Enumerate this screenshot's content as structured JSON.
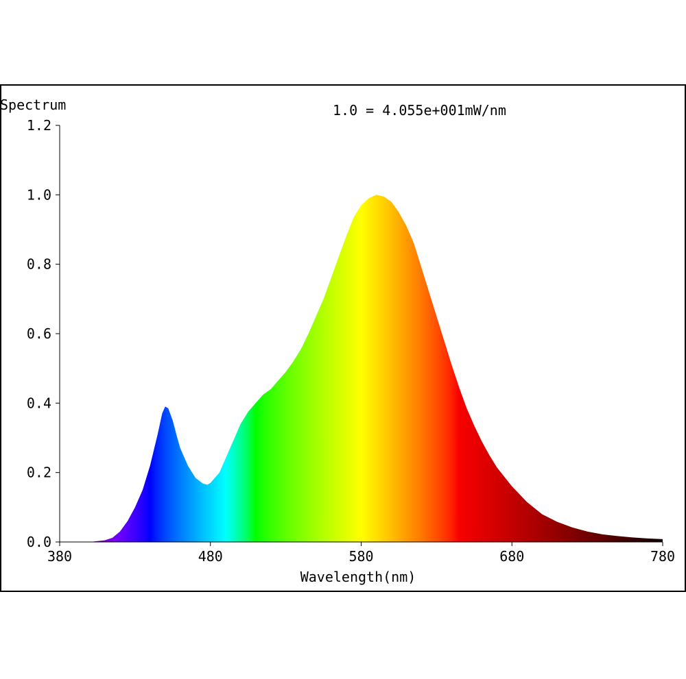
{
  "chart_data": {
    "type": "area",
    "title": "Spectrum",
    "annotation": "1.0 = 4.055e+001mW/nm",
    "xlabel": "Wavelength(nm)",
    "ylabel": "",
    "xlim": [
      380,
      780
    ],
    "ylim": [
      0,
      1.2
    ],
    "x_ticks": [
      {
        "value": 380,
        "label": "380"
      },
      {
        "value": 480,
        "label": "480"
      },
      {
        "value": 580,
        "label": "580"
      },
      {
        "value": 680,
        "label": "680"
      },
      {
        "value": 780,
        "label": "780"
      }
    ],
    "y_ticks": [
      {
        "value": 0.0,
        "label": "0.0"
      },
      {
        "value": 0.2,
        "label": "0.2"
      },
      {
        "value": 0.4,
        "label": "0.4"
      },
      {
        "value": 0.6,
        "label": "0.6"
      },
      {
        "value": 0.8,
        "label": "0.8"
      },
      {
        "value": 1.0,
        "label": "1.0"
      },
      {
        "value": 1.2,
        "label": "1.2"
      }
    ],
    "fill": "wavelength-rainbow",
    "series": [
      {
        "x": [
          380,
          400,
          410,
          415,
          420,
          425,
          430,
          435,
          440,
          445,
          448,
          450,
          452,
          455,
          458,
          460,
          465,
          470,
          475,
          478,
          480,
          483,
          486,
          490,
          495,
          500,
          505,
          510,
          515,
          520,
          525,
          530,
          535,
          540,
          545,
          550,
          555,
          560,
          565,
          570,
          575,
          580,
          585,
          590,
          595,
          600,
          605,
          610,
          615,
          620,
          625,
          630,
          635,
          640,
          645,
          650,
          655,
          660,
          665,
          670,
          680,
          690,
          700,
          710,
          720,
          730,
          740,
          750,
          760,
          770,
          780
        ],
        "y": [
          0,
          0.0,
          0.005,
          0.012,
          0.03,
          0.06,
          0.1,
          0.15,
          0.22,
          0.31,
          0.37,
          0.39,
          0.385,
          0.35,
          0.3,
          0.27,
          0.22,
          0.185,
          0.168,
          0.165,
          0.17,
          0.185,
          0.2,
          0.24,
          0.29,
          0.34,
          0.375,
          0.4,
          0.425,
          0.44,
          0.465,
          0.49,
          0.52,
          0.555,
          0.6,
          0.65,
          0.7,
          0.76,
          0.82,
          0.88,
          0.935,
          0.97,
          0.99,
          1.0,
          0.995,
          0.98,
          0.95,
          0.91,
          0.86,
          0.79,
          0.72,
          0.65,
          0.58,
          0.51,
          0.445,
          0.385,
          0.335,
          0.29,
          0.25,
          0.215,
          0.16,
          0.115,
          0.08,
          0.058,
          0.042,
          0.03,
          0.022,
          0.017,
          0.013,
          0.01,
          0.008
        ]
      }
    ]
  }
}
